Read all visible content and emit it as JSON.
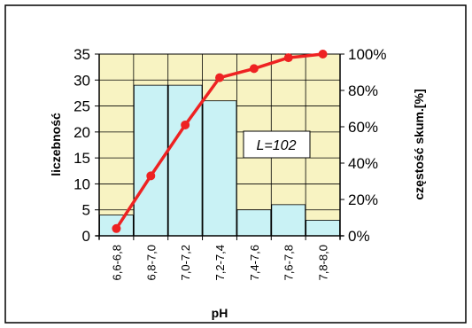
{
  "chart_data": {
    "type": "bar",
    "categories": [
      "6,6-6,8",
      "6,8-7,0",
      "7,0-7,2",
      "7,2-7,4",
      "7,4-7,6",
      "7,6-7,8",
      "7,8-8,0"
    ],
    "series": [
      {
        "type": "bar",
        "axis": "left",
        "values": [
          4,
          29,
          29,
          26,
          5,
          6,
          3
        ]
      },
      {
        "type": "line",
        "axis": "right",
        "values": [
          4,
          33,
          61,
          87,
          92,
          98,
          100
        ]
      }
    ],
    "xlabel": "pH",
    "ylabel": "liczebność",
    "y2label": "częstość skum.[%]",
    "ylim": [
      0,
      35
    ],
    "y2lim": [
      0,
      100
    ],
    "yticks": [
      "0",
      "5",
      "10",
      "15",
      "20",
      "25",
      "30",
      "35"
    ],
    "y2ticks": [
      "0%",
      "20%",
      "40%",
      "60%",
      "80%",
      "100%"
    ],
    "annotation": "L=102",
    "grid": true,
    "colors": {
      "plot_background": "#f8f3c2",
      "bar_fill": "#c9f2f5",
      "bar_stroke": "#000000",
      "line": "#ee2222",
      "frame": "#000000"
    }
  }
}
